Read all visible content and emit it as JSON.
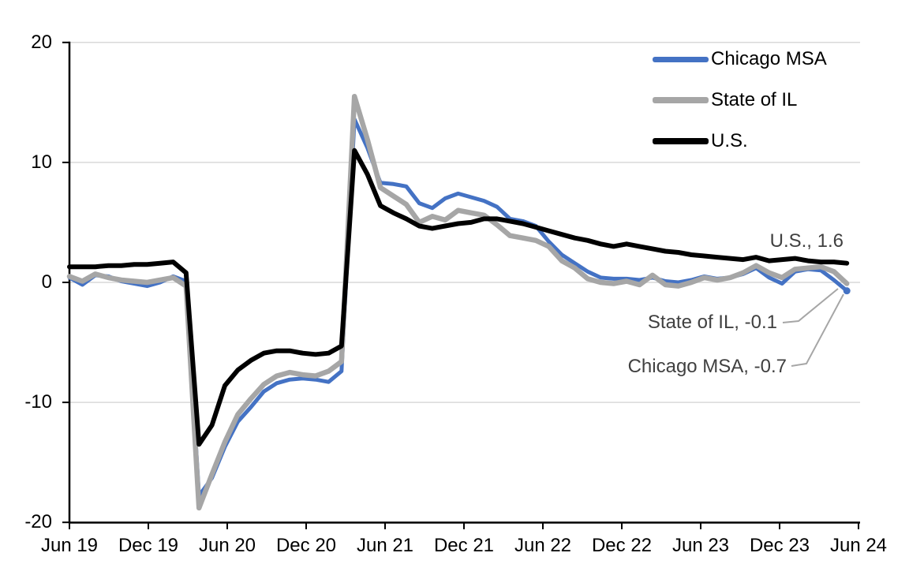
{
  "chart_data": {
    "type": "line",
    "title": "",
    "x_frequency": "monthly",
    "x_start": "Jun 2019",
    "x_end": "Jun 2024",
    "x_tick_labels": [
      "Jun 19",
      "Dec 19",
      "Jun 20",
      "Dec 20",
      "Jun 21",
      "Dec 21",
      "Jun 22",
      "Dec 22",
      "Jun 23",
      "Dec 23",
      "Jun 24"
    ],
    "y_ticks": [
      20,
      10,
      0,
      -10,
      -20
    ],
    "ylim": [
      -20,
      20
    ],
    "grid": "horizontal",
    "legend_position": "top-right",
    "series": [
      {
        "name": "Chicago MSA",
        "color": "#4472C4",
        "stroke_width": 5,
        "end_value": -0.7,
        "values": [
          0.4,
          -0.2,
          0.6,
          0.5,
          0.1,
          -0.1,
          -0.3,
          0.0,
          0.5,
          0.1,
          -17.8,
          -16.3,
          -13.7,
          -11.6,
          -10.4,
          -9.1,
          -8.4,
          -8.1,
          -8.0,
          -8.1,
          -8.3,
          -7.4,
          13.6,
          11.2,
          8.3,
          8.2,
          8.0,
          6.6,
          6.2,
          7.0,
          7.4,
          7.1,
          6.8,
          6.3,
          5.3,
          5.1,
          4.7,
          3.4,
          2.3,
          1.6,
          0.9,
          0.4,
          0.3,
          0.3,
          0.2,
          0.4,
          0.1,
          0.0,
          0.2,
          0.5,
          0.3,
          0.4,
          0.7,
          1.2,
          0.4,
          -0.1,
          0.9,
          1.1,
          1.0,
          0.2,
          -0.7
        ]
      },
      {
        "name": "State of IL",
        "color": "#A6A6A6",
        "stroke_width": 6.5,
        "end_value": -0.1,
        "values": [
          0.5,
          0.1,
          0.7,
          0.4,
          0.2,
          0.1,
          0.0,
          0.2,
          0.4,
          -0.3,
          -18.8,
          -16.0,
          -13.3,
          -11.0,
          -9.7,
          -8.5,
          -7.8,
          -7.5,
          -7.7,
          -7.8,
          -7.4,
          -6.6,
          15.5,
          11.9,
          7.9,
          7.2,
          6.5,
          5.0,
          5.5,
          5.2,
          6.0,
          5.8,
          5.6,
          4.8,
          3.9,
          3.7,
          3.5,
          3.0,
          1.8,
          1.2,
          0.3,
          0.0,
          -0.1,
          0.1,
          -0.2,
          0.6,
          -0.2,
          -0.3,
          0.0,
          0.4,
          0.2,
          0.4,
          0.8,
          1.4,
          0.8,
          0.4,
          1.1,
          1.2,
          1.3,
          0.9,
          -0.1
        ]
      },
      {
        "name": "U.S.",
        "color": "#000000",
        "stroke_width": 6,
        "end_value": 1.6,
        "values": [
          1.3,
          1.3,
          1.3,
          1.4,
          1.4,
          1.5,
          1.5,
          1.6,
          1.7,
          0.8,
          -13.5,
          -11.9,
          -8.6,
          -7.3,
          -6.5,
          -5.9,
          -5.7,
          -5.7,
          -5.9,
          -6.0,
          -5.9,
          -5.3,
          11.0,
          9.0,
          6.4,
          5.8,
          5.3,
          4.7,
          4.5,
          4.7,
          4.9,
          5.0,
          5.3,
          5.3,
          5.1,
          4.9,
          4.6,
          4.3,
          4.0,
          3.7,
          3.5,
          3.2,
          3.0,
          3.2,
          3.0,
          2.8,
          2.6,
          2.5,
          2.3,
          2.2,
          2.1,
          2.0,
          1.9,
          2.1,
          1.8,
          1.9,
          2.0,
          1.8,
          1.7,
          1.7,
          1.6
        ]
      }
    ],
    "annotations": [
      {
        "text": "U.S., 1.6",
        "series": "U.S."
      },
      {
        "text": "State of IL, -0.1",
        "series": "State of IL"
      },
      {
        "text": "Chicago MSA, -0.7",
        "series": "Chicago MSA"
      }
    ],
    "end_marker_series": "Chicago MSA",
    "colors": {
      "accent_blue": "#4472C4",
      "gray": "#A6A6A6",
      "black": "#000000",
      "gridline": "#D9D9D9",
      "axis": "#000000",
      "annotation_text": "#404040",
      "leader_line": "#A6A6A6"
    }
  }
}
